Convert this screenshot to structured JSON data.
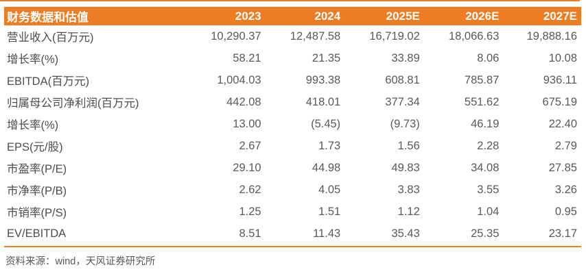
{
  "table": {
    "title": "财务数据和估值",
    "columns": [
      "2023",
      "2024",
      "2025E",
      "2026E",
      "2027E"
    ],
    "rows": [
      {
        "label": "营业收入(百万元)",
        "values": [
          "10,290.37",
          "12,487.58",
          "16,719.02",
          "18,066.63",
          "19,888.16"
        ]
      },
      {
        "label": "增长率(%)",
        "values": [
          "58.21",
          "21.35",
          "33.89",
          "8.06",
          "10.08"
        ]
      },
      {
        "label": "EBITDA(百万元)",
        "values": [
          "1,004.03",
          "993.38",
          "608.81",
          "785.87",
          "936.11"
        ]
      },
      {
        "label": "归属母公司净利润(百万元)",
        "values": [
          "442.08",
          "418.01",
          "377.34",
          "551.62",
          "675.19"
        ]
      },
      {
        "label": "增长率(%)",
        "values": [
          "13.00",
          "(5.45)",
          "(9.73)",
          "46.19",
          "22.40"
        ]
      },
      {
        "label": "EPS(元/股)",
        "values": [
          "2.67",
          "1.73",
          "1.56",
          "2.28",
          "2.79"
        ]
      },
      {
        "label": "市盈率(P/E)",
        "values": [
          "29.10",
          "44.98",
          "49.83",
          "34.08",
          "27.85"
        ]
      },
      {
        "label": "市净率(P/B)",
        "values": [
          "2.62",
          "4.05",
          "3.83",
          "3.55",
          "3.26"
        ]
      },
      {
        "label": "市销率(P/S)",
        "values": [
          "1.25",
          "1.51",
          "1.12",
          "1.04",
          "0.95"
        ]
      },
      {
        "label": "EV/EBITDA",
        "values": [
          "8.51",
          "11.43",
          "35.43",
          "25.35",
          "23.17"
        ]
      }
    ]
  },
  "footer": {
    "source": "资料来源：wind，天风证券研究所"
  },
  "colors": {
    "accent": "#EE7C23",
    "header_text": "#FFFFFF",
    "label_text": "#4D4D4D",
    "body_text": "#595959"
  }
}
